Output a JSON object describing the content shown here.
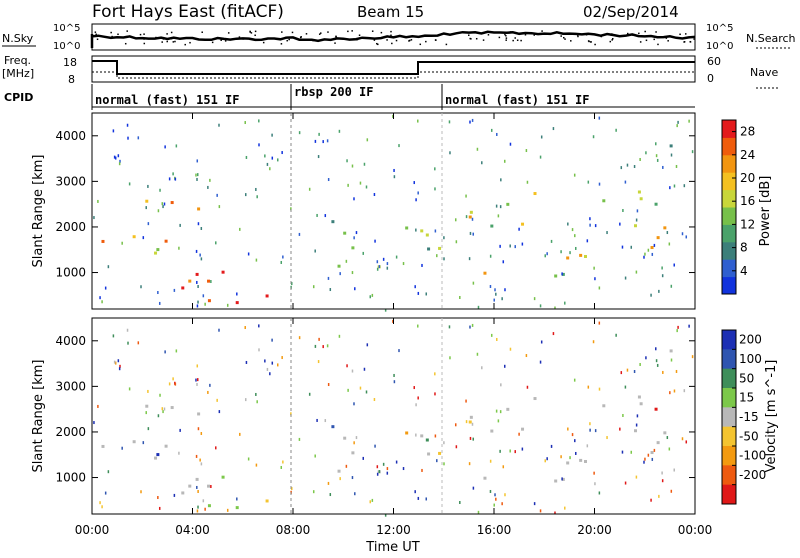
{
  "header": {
    "station": "Fort Hays East (fitACF)",
    "beam": "Beam 15",
    "date": "02/Sep/2014"
  },
  "top_panels": {
    "nsky_label": "N.Sky",
    "nsearch_label": "N.Search",
    "nsky_ticks": [
      "10^5",
      "10^0"
    ],
    "freq_label_1": "Freq.",
    "freq_label_2": "[MHz]",
    "freq_ticks": [
      "18",
      "8"
    ],
    "nave_label": "Nave",
    "nave_ticks": [
      "60",
      "0"
    ],
    "cpid_label": "CPID",
    "cpid_segments": [
      {
        "label": "normal (fast) 151 IF",
        "start_hour": 0
      },
      {
        "label": "rbsp 200 IF",
        "start_hour": 8
      },
      {
        "label": "normal (fast) 151 IF",
        "start_hour": 14
      }
    ]
  },
  "chart_data": [
    {
      "type": "heatmap",
      "quantity": "power",
      "xlabel": "",
      "ylabel": "Slant Range [km]",
      "xlim_hours": [
        0,
        24
      ],
      "ylim_km": [
        200,
        4500
      ],
      "yticks": [
        1000,
        2000,
        3000,
        4000
      ],
      "colorbar_label": "Power [dB]",
      "colorbar_ticks": [
        "4",
        "8",
        "12",
        "16",
        "20",
        "24",
        "28"
      ],
      "colorbar_range": [
        0,
        30
      ],
      "colormap": [
        "#1133dd",
        "#2f5fd0",
        "#3c7f7a",
        "#4aa26a",
        "#77c04a",
        "#c8d63a",
        "#f4c020",
        "#f29510",
        "#ef5c0c",
        "#e31a1c"
      ],
      "echo_bands": [
        {
          "t_start": 0.0,
          "t_end": 6.0,
          "r_start": 1400,
          "r_end": 2600,
          "intensity": 0.7
        },
        {
          "t_start": 1.5,
          "t_end": 8.0,
          "r_start": 250,
          "r_end": 1100,
          "intensity": 0.8
        },
        {
          "t_start": 3.0,
          "t_end": 10.0,
          "r_start": 200,
          "r_end": 500,
          "intensity": 0.95
        },
        {
          "t_start": 9.5,
          "t_end": 13.5,
          "r_start": 900,
          "r_end": 2500,
          "intensity": 0.35
        },
        {
          "t_start": 13.0,
          "t_end": 24.0,
          "r_start": 1300,
          "r_end": 2900,
          "intensity": 0.6
        },
        {
          "t_start": 14.5,
          "t_end": 20.0,
          "r_start": 800,
          "r_end": 1300,
          "intensity": 0.55
        },
        {
          "t_start": 21.5,
          "t_end": 24.0,
          "r_start": 3600,
          "r_end": 4000,
          "intensity": 0.3
        }
      ]
    },
    {
      "type": "heatmap",
      "quantity": "velocity",
      "xlabel": "Time UT",
      "ylabel": "Slant Range [km]",
      "xlim_hours": [
        0,
        24
      ],
      "ylim_km": [
        200,
        4500
      ],
      "yticks": [
        1000,
        2000,
        3000,
        4000
      ],
      "xticks": [
        "00:00",
        "04:00",
        "08:00",
        "12:00",
        "16:00",
        "20:00",
        "00:00"
      ],
      "colorbar_label": "Velocity [m s^-1]",
      "colorbar_ticks": [
        "200",
        "100",
        "50",
        "15",
        "-15",
        "-50",
        "-100",
        "-200"
      ],
      "colorbar_colors": [
        "#1c2fb4",
        "#2f55b0",
        "#3e8e5a",
        "#7cc84a",
        "#b8b8b8",
        "#f4c430",
        "#f39a10",
        "#ee5a10",
        "#e01818"
      ]
    }
  ]
}
